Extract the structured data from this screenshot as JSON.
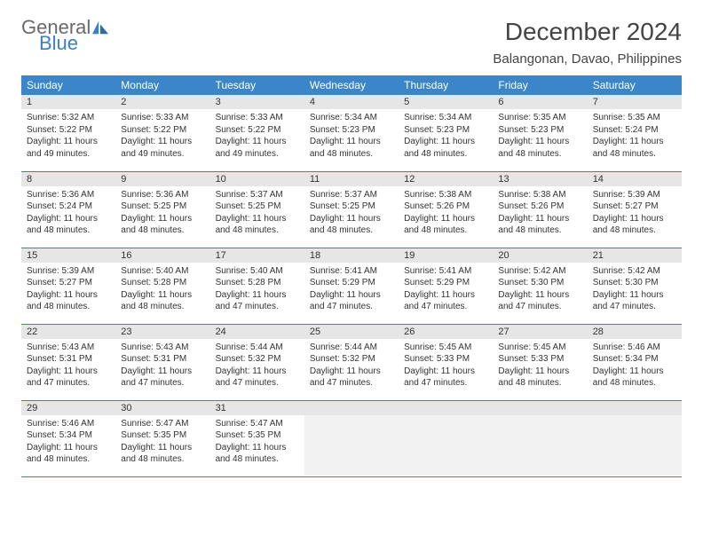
{
  "logo": {
    "general": "General",
    "blue": "Blue"
  },
  "title": "December 2024",
  "location": "Balangonan, Davao, Philippines",
  "colors": {
    "header_bg": "#3b86c8",
    "header_text": "#ffffff",
    "daynum_bg": "#e6e6e6",
    "row_border": "#3b7fc4",
    "empty_bg": "#f2f2f2",
    "logo_general": "#6a6a6a",
    "logo_blue": "#3b7fc4"
  },
  "weekdays": [
    "Sunday",
    "Monday",
    "Tuesday",
    "Wednesday",
    "Thursday",
    "Friday",
    "Saturday"
  ],
  "weeks": [
    [
      {
        "n": "1",
        "sr": "5:32 AM",
        "ss": "5:22 PM",
        "dl": "11 hours and 49 minutes."
      },
      {
        "n": "2",
        "sr": "5:33 AM",
        "ss": "5:22 PM",
        "dl": "11 hours and 49 minutes."
      },
      {
        "n": "3",
        "sr": "5:33 AM",
        "ss": "5:22 PM",
        "dl": "11 hours and 49 minutes."
      },
      {
        "n": "4",
        "sr": "5:34 AM",
        "ss": "5:23 PM",
        "dl": "11 hours and 48 minutes."
      },
      {
        "n": "5",
        "sr": "5:34 AM",
        "ss": "5:23 PM",
        "dl": "11 hours and 48 minutes."
      },
      {
        "n": "6",
        "sr": "5:35 AM",
        "ss": "5:23 PM",
        "dl": "11 hours and 48 minutes."
      },
      {
        "n": "7",
        "sr": "5:35 AM",
        "ss": "5:24 PM",
        "dl": "11 hours and 48 minutes."
      }
    ],
    [
      {
        "n": "8",
        "sr": "5:36 AM",
        "ss": "5:24 PM",
        "dl": "11 hours and 48 minutes."
      },
      {
        "n": "9",
        "sr": "5:36 AM",
        "ss": "5:25 PM",
        "dl": "11 hours and 48 minutes."
      },
      {
        "n": "10",
        "sr": "5:37 AM",
        "ss": "5:25 PM",
        "dl": "11 hours and 48 minutes."
      },
      {
        "n": "11",
        "sr": "5:37 AM",
        "ss": "5:25 PM",
        "dl": "11 hours and 48 minutes."
      },
      {
        "n": "12",
        "sr": "5:38 AM",
        "ss": "5:26 PM",
        "dl": "11 hours and 48 minutes."
      },
      {
        "n": "13",
        "sr": "5:38 AM",
        "ss": "5:26 PM",
        "dl": "11 hours and 48 minutes."
      },
      {
        "n": "14",
        "sr": "5:39 AM",
        "ss": "5:27 PM",
        "dl": "11 hours and 48 minutes."
      }
    ],
    [
      {
        "n": "15",
        "sr": "5:39 AM",
        "ss": "5:27 PM",
        "dl": "11 hours and 48 minutes."
      },
      {
        "n": "16",
        "sr": "5:40 AM",
        "ss": "5:28 PM",
        "dl": "11 hours and 48 minutes."
      },
      {
        "n": "17",
        "sr": "5:40 AM",
        "ss": "5:28 PM",
        "dl": "11 hours and 47 minutes."
      },
      {
        "n": "18",
        "sr": "5:41 AM",
        "ss": "5:29 PM",
        "dl": "11 hours and 47 minutes."
      },
      {
        "n": "19",
        "sr": "5:41 AM",
        "ss": "5:29 PM",
        "dl": "11 hours and 47 minutes."
      },
      {
        "n": "20",
        "sr": "5:42 AM",
        "ss": "5:30 PM",
        "dl": "11 hours and 47 minutes."
      },
      {
        "n": "21",
        "sr": "5:42 AM",
        "ss": "5:30 PM",
        "dl": "11 hours and 47 minutes."
      }
    ],
    [
      {
        "n": "22",
        "sr": "5:43 AM",
        "ss": "5:31 PM",
        "dl": "11 hours and 47 minutes."
      },
      {
        "n": "23",
        "sr": "5:43 AM",
        "ss": "5:31 PM",
        "dl": "11 hours and 47 minutes."
      },
      {
        "n": "24",
        "sr": "5:44 AM",
        "ss": "5:32 PM",
        "dl": "11 hours and 47 minutes."
      },
      {
        "n": "25",
        "sr": "5:44 AM",
        "ss": "5:32 PM",
        "dl": "11 hours and 47 minutes."
      },
      {
        "n": "26",
        "sr": "5:45 AM",
        "ss": "5:33 PM",
        "dl": "11 hours and 47 minutes."
      },
      {
        "n": "27",
        "sr": "5:45 AM",
        "ss": "5:33 PM",
        "dl": "11 hours and 48 minutes."
      },
      {
        "n": "28",
        "sr": "5:46 AM",
        "ss": "5:34 PM",
        "dl": "11 hours and 48 minutes."
      }
    ],
    [
      {
        "n": "29",
        "sr": "5:46 AM",
        "ss": "5:34 PM",
        "dl": "11 hours and 48 minutes."
      },
      {
        "n": "30",
        "sr": "5:47 AM",
        "ss": "5:35 PM",
        "dl": "11 hours and 48 minutes."
      },
      {
        "n": "31",
        "sr": "5:47 AM",
        "ss": "5:35 PM",
        "dl": "11 hours and 48 minutes."
      },
      null,
      null,
      null,
      null
    ]
  ],
  "labels": {
    "sunrise": "Sunrise: ",
    "sunset": "Sunset: ",
    "daylight": "Daylight: "
  }
}
